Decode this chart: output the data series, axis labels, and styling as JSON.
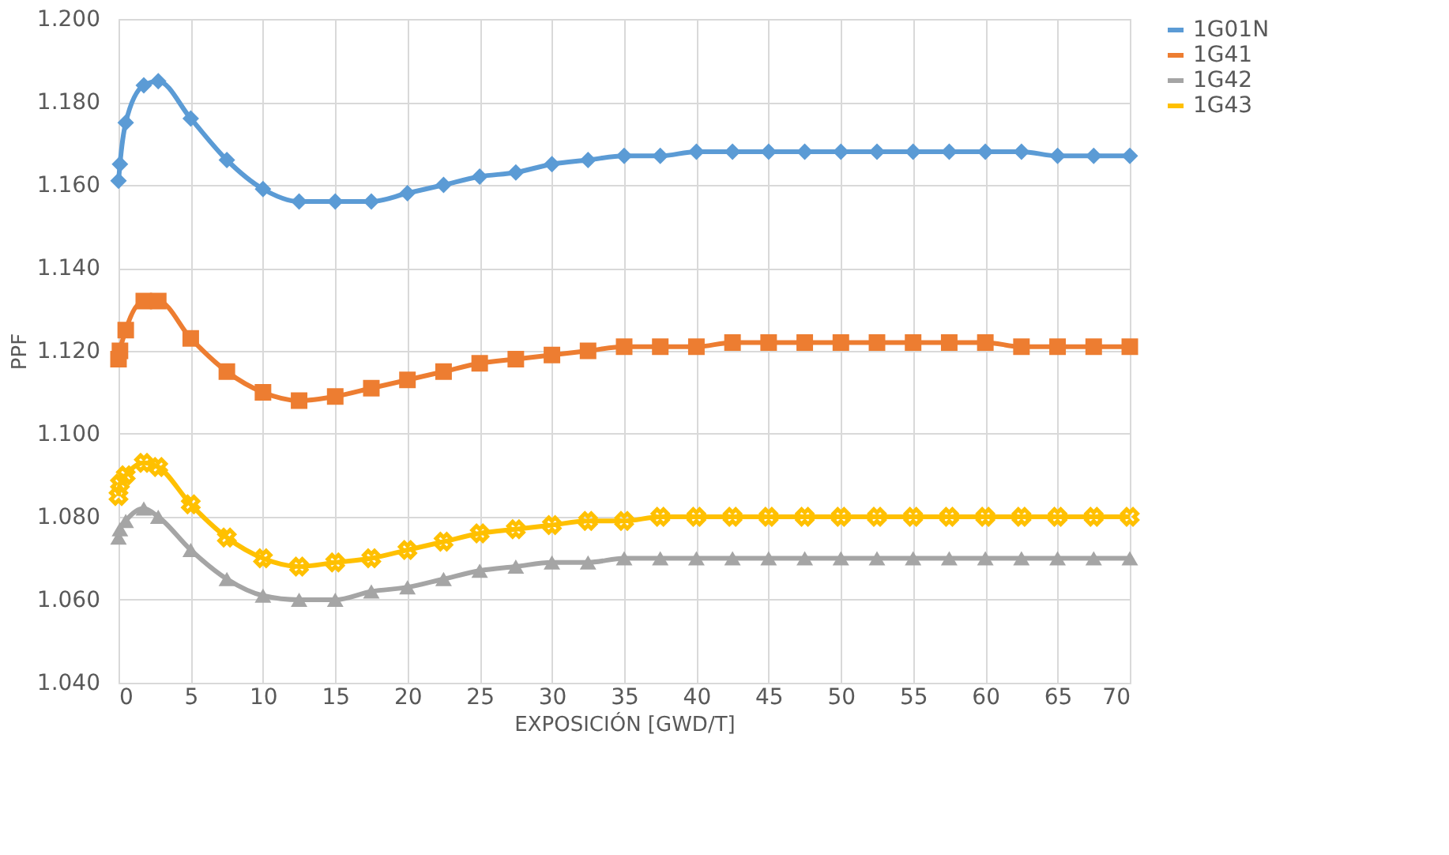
{
  "chart_data": {
    "type": "line",
    "xlabel": "EXPOSICIÓN [GWD/T]",
    "ylabel": "PPF",
    "x": [
      0,
      0.1,
      0.5,
      1.75,
      2.75,
      5,
      7.5,
      10,
      12.5,
      15,
      17.5,
      20,
      22.5,
      25,
      27.5,
      30,
      32.5,
      35,
      37.5,
      40,
      42.5,
      45,
      47.5,
      50,
      52.5,
      55,
      57.5,
      60,
      62.5,
      65,
      67.5,
      70
    ],
    "series": [
      {
        "name": "1G01N",
        "color": "#5b9bd5",
        "marker": "diamond",
        "values": [
          1.161,
          1.165,
          1.175,
          1.184,
          1.185,
          1.176,
          1.166,
          1.159,
          1.156,
          1.156,
          1.156,
          1.158,
          1.16,
          1.162,
          1.163,
          1.165,
          1.166,
          1.167,
          1.167,
          1.168,
          1.168,
          1.168,
          1.168,
          1.168,
          1.168,
          1.168,
          1.168,
          1.168,
          1.168,
          1.167,
          1.167,
          1.167
        ]
      },
      {
        "name": "1G41",
        "color": "#ed7d31",
        "marker": "square",
        "values": [
          1.118,
          1.12,
          1.125,
          1.132,
          1.132,
          1.123,
          1.115,
          1.11,
          1.108,
          1.109,
          1.111,
          1.113,
          1.115,
          1.117,
          1.118,
          1.119,
          1.12,
          1.121,
          1.121,
          1.121,
          1.122,
          1.122,
          1.122,
          1.122,
          1.122,
          1.122,
          1.122,
          1.122,
          1.121,
          1.121,
          1.121,
          1.121
        ]
      },
      {
        "name": "1G42",
        "color": "#a5a5a5",
        "marker": "triangle",
        "values": [
          1.075,
          1.077,
          1.079,
          1.082,
          1.08,
          1.072,
          1.065,
          1.061,
          1.06,
          1.06,
          1.062,
          1.063,
          1.065,
          1.067,
          1.068,
          1.069,
          1.069,
          1.07,
          1.07,
          1.07,
          1.07,
          1.07,
          1.07,
          1.07,
          1.07,
          1.07,
          1.07,
          1.07,
          1.07,
          1.07,
          1.07,
          1.07
        ]
      },
      {
        "name": "1G43",
        "color": "#ffc000",
        "marker": "cross",
        "values": [
          1.085,
          1.088,
          1.09,
          1.093,
          1.092,
          1.083,
          1.075,
          1.07,
          1.068,
          1.069,
          1.07,
          1.072,
          1.074,
          1.076,
          1.077,
          1.078,
          1.079,
          1.079,
          1.08,
          1.08,
          1.08,
          1.08,
          1.08,
          1.08,
          1.08,
          1.08,
          1.08,
          1.08,
          1.08,
          1.08,
          1.08,
          1.08
        ]
      }
    ],
    "xlim": [
      0,
      70
    ],
    "xticks": [
      0,
      5,
      10,
      15,
      20,
      25,
      30,
      35,
      40,
      45,
      50,
      55,
      60,
      65,
      70
    ],
    "ylim": [
      1.04,
      1.2
    ],
    "yticks": [
      {
        "value": 1.04,
        "label": "1.040"
      },
      {
        "value": 1.06,
        "label": "1.060"
      },
      {
        "value": 1.08,
        "label": "1.080"
      },
      {
        "value": 1.1,
        "label": "1.100"
      },
      {
        "value": 1.12,
        "label": "1.120"
      },
      {
        "value": 1.14,
        "label": "1.140"
      },
      {
        "value": 1.16,
        "label": "1.160"
      },
      {
        "value": 1.18,
        "label": "1.180"
      },
      {
        "value": 1.2,
        "label": "1.200"
      }
    ],
    "grid": true,
    "legend": "right",
    "line_style": "solid"
  }
}
